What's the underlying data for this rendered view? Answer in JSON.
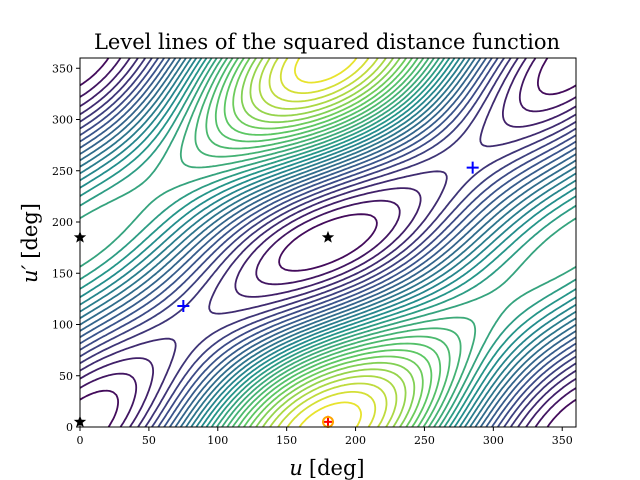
{
  "chart_data": {
    "type": "contour",
    "title": "Level lines of the squared distance function",
    "xlabel_var": "u",
    "xlabel_unit": "[deg]",
    "ylabel_var": "u′",
    "ylabel_unit": "[deg]",
    "xlim": [
      0,
      360
    ],
    "ylim": [
      0,
      360
    ],
    "xticks": [
      0,
      50,
      100,
      150,
      200,
      250,
      300,
      350
    ],
    "yticks": [
      0,
      50,
      100,
      150,
      200,
      250,
      300,
      350
    ],
    "colormap": [
      "#440154",
      "#3b528b",
      "#21918c",
      "#5ec962",
      "#fde725"
    ],
    "markers": [
      {
        "name": "local-min",
        "symbol": "+",
        "color": "#0000ff",
        "x": 285,
        "y": 253
      },
      {
        "name": "local-min",
        "symbol": "+",
        "color": "#0000ff",
        "x": 75,
        "y": 118
      },
      {
        "name": "global-max",
        "symbol": "+",
        "color": "#ff0000",
        "x": 180,
        "y": 5
      },
      {
        "name": "global-max-ring",
        "symbol": "o",
        "color": "#ffa500",
        "x": 180,
        "y": 5
      },
      {
        "name": "saddle",
        "symbol": "star",
        "color": "#000000",
        "x": 180,
        "y": 185
      },
      {
        "name": "saddle",
        "symbol": "star",
        "color": "#000000",
        "x": 0,
        "y": 185
      },
      {
        "name": "saddle",
        "symbol": "star",
        "color": "#000000",
        "x": 0,
        "y": 5
      }
    ]
  }
}
